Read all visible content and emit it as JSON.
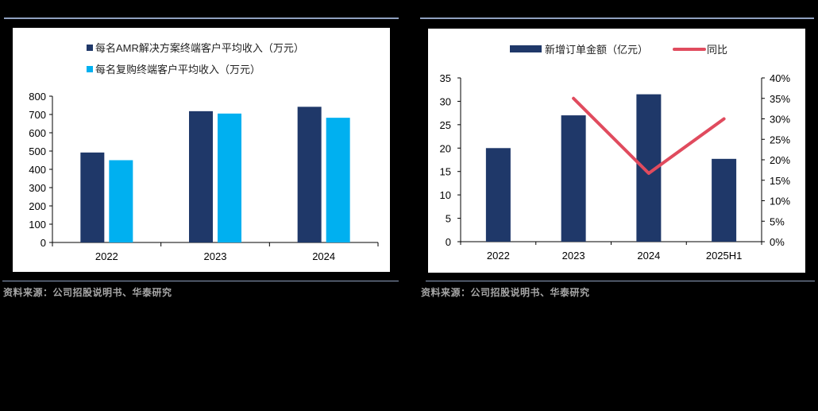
{
  "colors": {
    "dark_navy": "#1f3869",
    "light_blue": "#00b0f0",
    "red_line": "#e04b5e",
    "rule": "#8fa0bf",
    "source_text": "#a6a6a6"
  },
  "left": {
    "legend": [
      "每名AMR解决方案终端客户平均收入（万元）",
      "每名复购终端客户平均收入（万元）"
    ],
    "source": "资料来源：公司招股说明书、华泰研究"
  },
  "right": {
    "legend": [
      "新增订单金额（亿元）",
      "同比"
    ],
    "source": "资料来源：公司招股说明书、华泰研究"
  },
  "chart_data": [
    {
      "type": "bar",
      "title": "",
      "categories": [
        "2022",
        "2023",
        "2024"
      ],
      "series": [
        {
          "name": "每名AMR解决方案终端客户平均收入（万元）",
          "values": [
            492,
            718,
            742
          ],
          "color": "#1f3869"
        },
        {
          "name": "每名复购终端客户平均收入（万元）",
          "values": [
            450,
            705,
            682
          ],
          "color": "#00b0f0"
        }
      ],
      "xlabel": "",
      "ylabel": "",
      "ylim": [
        0,
        800
      ],
      "yticks": [
        0,
        100,
        200,
        300,
        400,
        500,
        600,
        700,
        800
      ],
      "grid": false,
      "legend_position": "top"
    },
    {
      "type": "bar+line",
      "title": "",
      "categories": [
        "2022",
        "2023",
        "2024",
        "2025H1"
      ],
      "series": [
        {
          "name": "新增订单金额（亿元）",
          "type": "bar",
          "axis": "left",
          "values": [
            20,
            27,
            31.5,
            17.7
          ],
          "color": "#1f3869"
        },
        {
          "name": "同比",
          "type": "line",
          "axis": "right",
          "values": [
            null,
            0.35,
            0.167,
            0.3
          ],
          "color": "#e04b5e"
        }
      ],
      "ylim": [
        0,
        35
      ],
      "yticks": [
        0,
        5,
        10,
        15,
        20,
        25,
        30,
        35
      ],
      "y2lim": [
        0,
        0.4
      ],
      "y2ticks": [
        "0%",
        "5%",
        "10%",
        "15%",
        "20%",
        "25%",
        "30%",
        "35%",
        "40%"
      ],
      "grid": false,
      "legend_position": "top"
    }
  ]
}
